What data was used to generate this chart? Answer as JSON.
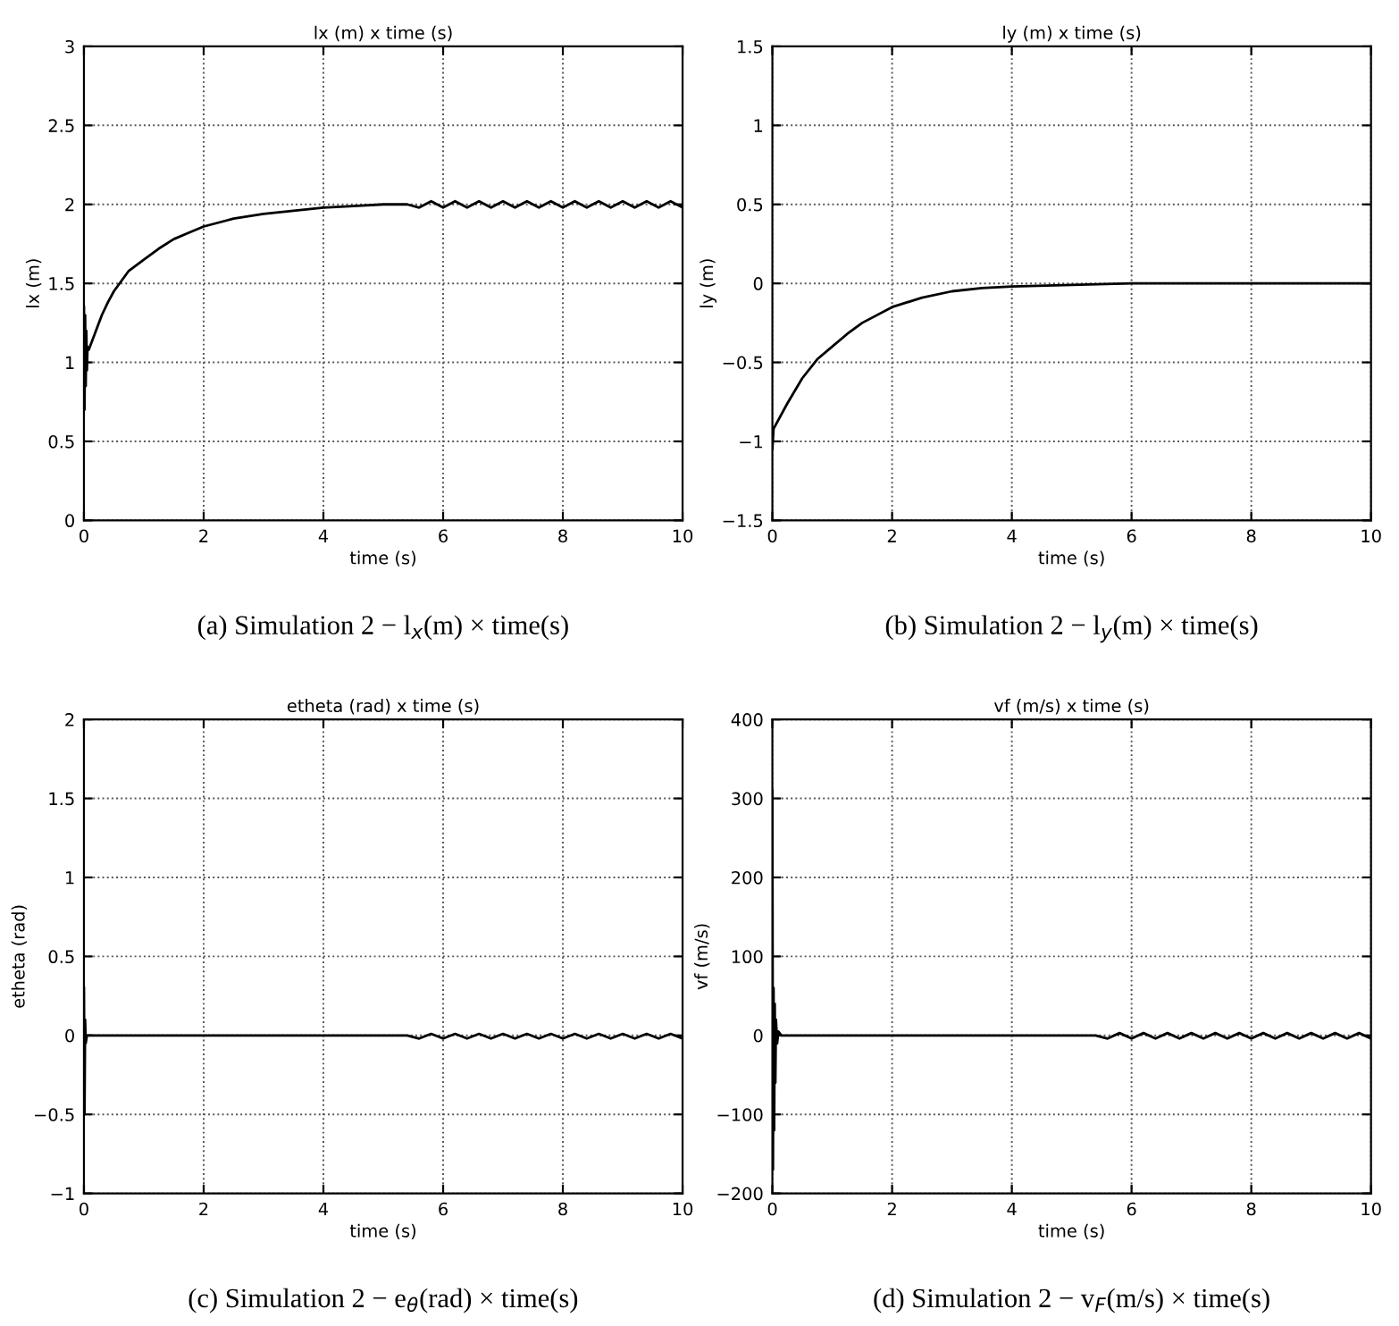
{
  "chart_data": [
    {
      "type": "line",
      "title": "lx (m) x time (s)",
      "xlabel": "time (s)",
      "ylabel": "lx (m)",
      "annotations": [
        "(a) Simulation 2 − l$_{x}$(m) × time(s)"
      ],
      "xlim": [
        0,
        10
      ],
      "ylim": [
        0,
        3
      ],
      "xticks": [
        0,
        2,
        4,
        6,
        8,
        10
      ],
      "yticks": [
        0,
        0.5,
        1,
        1.5,
        2,
        2.5,
        3
      ],
      "grid": true,
      "line_style": "solid",
      "marker": "none",
      "series": [
        {
          "color": "#000000",
          "x": [
            0,
            0.01,
            0.02,
            0.03,
            0.04,
            0.05,
            0.06,
            0.08,
            0.1,
            0.2,
            0.3,
            0.4,
            0.5,
            0.75,
            1,
            1.25,
            1.5,
            1.75,
            2,
            2.5,
            3,
            3.5,
            4,
            4.5,
            5,
            5.4,
            5.6,
            5.8,
            6,
            6.2,
            6.4,
            6.6,
            6.8,
            7,
            7.2,
            7.4,
            7.6,
            7.8,
            8,
            8.2,
            8.4,
            8.6,
            8.8,
            9,
            9.2,
            9.4,
            9.6,
            9.8,
            10
          ],
          "values": [
            1.35,
            0.7,
            1.3,
            0.85,
            1.2,
            0.95,
            1.1,
            1.08,
            1.1,
            1.2,
            1.3,
            1.38,
            1.45,
            1.58,
            1.65,
            1.72,
            1.78,
            1.82,
            1.86,
            1.91,
            1.94,
            1.96,
            1.98,
            1.99,
            2.0,
            2.0,
            1.98,
            2.02,
            1.98,
            2.02,
            1.98,
            2.02,
            1.98,
            2.02,
            1.98,
            2.02,
            1.98,
            2.02,
            1.98,
            2.02,
            1.98,
            2.02,
            1.98,
            2.02,
            1.98,
            2.02,
            1.98,
            2.02,
            1.98
          ]
        }
      ]
    },
    {
      "type": "line",
      "title": "ly (m) x time (s)",
      "xlabel": "time (s)",
      "ylabel": "ly (m)",
      "annotations": [
        "(b) Simulation 2 − l$_{y}$(m) × time(s)"
      ],
      "xlim": [
        0,
        10
      ],
      "ylim": [
        -1.5,
        1.5
      ],
      "xticks": [
        0,
        2,
        4,
        6,
        8,
        10
      ],
      "yticks": [
        -1.5,
        -1,
        -0.5,
        0,
        0.5,
        1,
        1.5
      ],
      "grid": true,
      "line_style": "solid",
      "marker": "none",
      "series": [
        {
          "color": "#000000",
          "x": [
            0,
            0.02,
            0.25,
            0.5,
            0.75,
            1,
            1.25,
            1.5,
            2,
            2.5,
            3,
            3.5,
            4,
            5,
            6,
            8,
            10
          ],
          "values": [
            -1.05,
            -0.92,
            -0.76,
            -0.6,
            -0.48,
            -0.4,
            -0.32,
            -0.25,
            -0.15,
            -0.09,
            -0.05,
            -0.03,
            -0.02,
            -0.01,
            0,
            0,
            0
          ]
        }
      ]
    },
    {
      "type": "line",
      "title": "etheta (rad) x time (s)",
      "xlabel": "time (s)",
      "ylabel": "etheta (rad)",
      "annotations": [
        "(c) Simulation 2 − e$_{θ}$(rad) × time(s)"
      ],
      "xlim": [
        0,
        10
      ],
      "ylim": [
        -1,
        2
      ],
      "xticks": [
        0,
        2,
        4,
        6,
        8,
        10
      ],
      "yticks": [
        -1,
        -0.5,
        0,
        0.5,
        1,
        1.5,
        2
      ],
      "grid": true,
      "line_style": "solid",
      "marker": "none",
      "series": [
        {
          "color": "#000000",
          "x": [
            0,
            0.01,
            0.02,
            0.03,
            0.05,
            0.1,
            1,
            2,
            3,
            4,
            5,
            5.4,
            5.6,
            5.8,
            6,
            6.2,
            6.4,
            6.6,
            6.8,
            7,
            7.2,
            7.4,
            7.6,
            7.8,
            8,
            8.2,
            8.4,
            8.6,
            8.8,
            9,
            9.2,
            9.4,
            9.6,
            9.8,
            10
          ],
          "values": [
            0.3,
            -0.5,
            0.1,
            -0.05,
            0,
            0,
            0,
            0,
            0,
            0,
            0,
            0,
            -0.02,
            0.01,
            -0.02,
            0.01,
            -0.02,
            0.01,
            -0.02,
            0.01,
            -0.02,
            0.01,
            -0.02,
            0.01,
            -0.02,
            0.01,
            -0.02,
            0.01,
            -0.02,
            0.01,
            -0.02,
            0.01,
            -0.02,
            0.01,
            -0.02
          ]
        }
      ]
    },
    {
      "type": "line",
      "title": "vf (m/s) x time (s)",
      "xlabel": "time (s)",
      "ylabel": "vf (m/s)",
      "annotations": [
        "(d) Simulation 2 − v$_{F}$(m/s) × time(s)"
      ],
      "xlim": [
        0,
        10
      ],
      "ylim": [
        -200,
        400
      ],
      "xticks": [
        0,
        2,
        4,
        6,
        8,
        10
      ],
      "yticks": [
        -200,
        -100,
        0,
        100,
        200,
        300,
        400
      ],
      "grid": true,
      "line_style": "solid",
      "marker": "none",
      "series": [
        {
          "color": "#000000",
          "x": [
            0,
            0.01,
            0.02,
            0.03,
            0.04,
            0.05,
            0.06,
            0.08,
            0.1,
            0.15,
            1,
            2,
            3,
            4,
            5,
            5.4,
            5.6,
            5.8,
            6,
            6.2,
            6.4,
            6.6,
            6.8,
            7,
            7.2,
            7.4,
            7.6,
            7.8,
            8,
            8.2,
            8.4,
            8.6,
            8.8,
            9,
            9.2,
            9.4,
            9.6,
            9.8,
            10
          ],
          "values": [
            310,
            -170,
            60,
            -120,
            40,
            -60,
            20,
            -10,
            5,
            0,
            0,
            0,
            0,
            0,
            0,
            0,
            -4,
            3,
            -4,
            3,
            -4,
            3,
            -4,
            3,
            -4,
            3,
            -4,
            3,
            -4,
            3,
            -4,
            3,
            -4,
            3,
            -4,
            3,
            -4,
            3,
            -4
          ]
        }
      ]
    }
  ]
}
